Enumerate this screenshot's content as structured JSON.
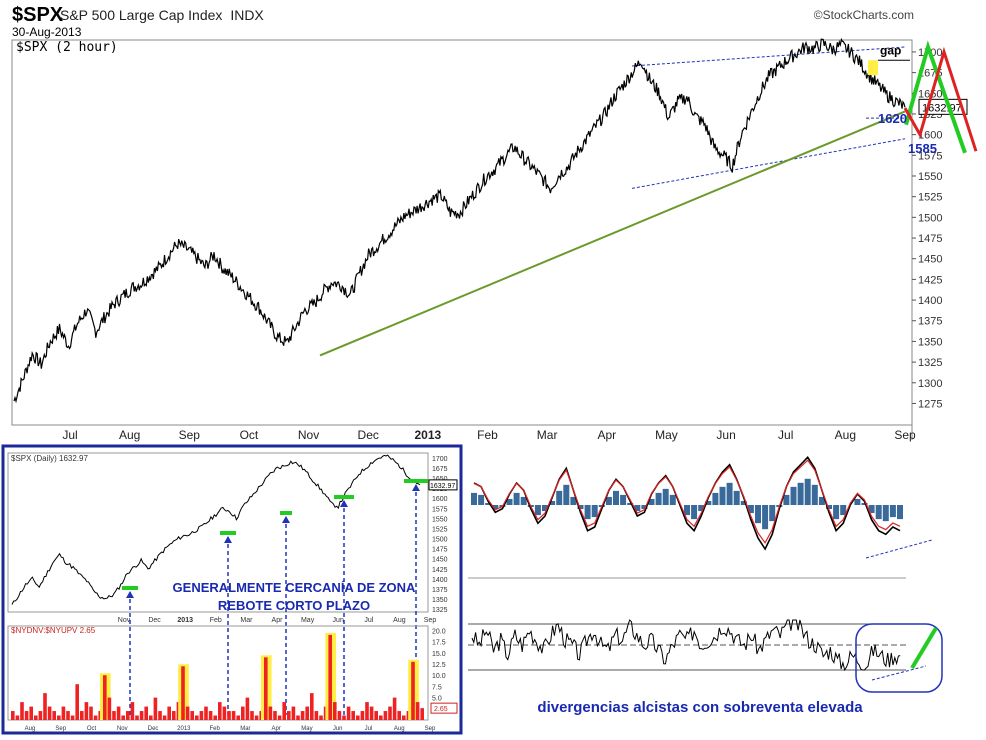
{
  "header": {
    "title": "$SPX",
    "subtitle": "S&P 500 Large Cap Index",
    "exchange": "INDX",
    "logo": "©StockCharts.com",
    "date": "30-Aug-2013",
    "legend": "$SPX (2 hour)"
  },
  "colors": {
    "price": "#000000",
    "trendline": "#6a9a2a",
    "channel": "#2233bb",
    "green_path": "#22cc22",
    "red_path": "#dd2222",
    "gap_highlight": "#ffee44",
    "inset_border": "#1a2a9a",
    "annotation_text": "#1a2ab0",
    "histogram": "#3a6a9a",
    "volume_bar": "#ee2222"
  },
  "annotations": {
    "gap": "gap",
    "level_1620": "1620",
    "level_1585": "1585",
    "inset_text_line1": "GENERALMENTE CERCANÍA DE ZONA",
    "inset_text_line2": "REBOTE CORTO PLAZO",
    "divergence_text": "divergencias alcistas con sobreventa elevada"
  },
  "chart_data": [
    {
      "type": "line",
      "series": [
        {
          "values": [
            1278,
            1305,
            1335,
            1322,
            1350,
            1365,
            1345,
            1372,
            1388,
            1362,
            1380,
            1395,
            1405,
            1415,
            1420,
            1430,
            1440,
            1455,
            1468,
            1462,
            1452,
            1440,
            1455,
            1438,
            1428,
            1415,
            1402,
            1390,
            1372,
            1355,
            1348,
            1368,
            1388,
            1395,
            1410,
            1422,
            1418,
            1406,
            1432,
            1455,
            1466,
            1478,
            1490,
            1502,
            1508,
            1515,
            1522,
            1526,
            1506,
            1505,
            1520,
            1535,
            1550,
            1560,
            1573,
            1585,
            1572,
            1560,
            1548,
            1535,
            1552,
            1562,
            1580,
            1595,
            1610,
            1625,
            1645,
            1660,
            1675,
            1690,
            1665,
            1650,
            1620,
            1640,
            1645,
            1622,
            1612,
            1585,
            1575,
            1562,
            1600,
            1625,
            1650,
            1670,
            1680,
            1690,
            1698,
            1706,
            1704,
            1710,
            1703,
            1708,
            1700,
            1688,
            1672,
            1660,
            1648,
            1640,
            1632.97
          ]
        }
      ],
      "x_labels": [
        "Jul",
        "Aug",
        "Sep",
        "Oct",
        "Nov",
        "Dec",
        "2013",
        "Feb",
        "Mar",
        "Apr",
        "May",
        "Jun",
        "Jul",
        "Aug",
        "Sep"
      ],
      "y_ticks": [
        1275,
        1300,
        1325,
        1350,
        1375,
        1400,
        1425,
        1450,
        1475,
        1500,
        1525,
        1550,
        1575,
        1600,
        1625,
        1650,
        1675,
        1700
      ],
      "ylim": [
        1255,
        1712
      ],
      "last_value_label": "1632.97"
    },
    {
      "type": "line",
      "legend_price": "$SPX (Daily) 1632.97",
      "series": [
        {
          "values": [
            1335,
            1360,
            1385,
            1400,
            1380,
            1410,
            1440,
            1460,
            1440,
            1428,
            1410,
            1395,
            1370,
            1355,
            1352,
            1362,
            1385,
            1415,
            1430,
            1445,
            1425,
            1445,
            1465,
            1482,
            1495,
            1505,
            1510,
            1520,
            1530,
            1545,
            1560,
            1575,
            1568,
            1550,
            1580,
            1600,
            1620,
            1640,
            1660,
            1675,
            1680,
            1690,
            1685,
            1670,
            1650,
            1630,
            1610,
            1585,
            1580,
            1610,
            1635,
            1660,
            1675,
            1690,
            1700,
            1705,
            1695,
            1680,
            1660,
            1645,
            1632.97
          ]
        }
      ],
      "x_labels": [
        "Nov",
        "Dec",
        "2013",
        "Feb",
        "Mar",
        "Apr",
        "May",
        "Jun",
        "Jul",
        "Aug",
        "Sep"
      ],
      "y_ticks": [
        1325,
        1350,
        1375,
        1400,
        1425,
        1450,
        1475,
        1500,
        1525,
        1550,
        1575,
        1600,
        1625,
        1650,
        1675,
        1700
      ],
      "ylim": [
        1318,
        1712
      ],
      "last_value_label": "1632.97"
    },
    {
      "type": "bar",
      "legend": "$NYDNV:$NYUPV 2.65",
      "series": [
        {
          "values": [
            2,
            1,
            4,
            2,
            3,
            1,
            2,
            6,
            3,
            2,
            1,
            3,
            2,
            1,
            8,
            2,
            4,
            3,
            1,
            2,
            10,
            5,
            2,
            3,
            1,
            2,
            4,
            1,
            2,
            3,
            1,
            5,
            2,
            1,
            3,
            2,
            4,
            12,
            3,
            2,
            1,
            2,
            3,
            2,
            1,
            4,
            3,
            2,
            2,
            1,
            3,
            5,
            2,
            1,
            2,
            14,
            3,
            2,
            1,
            4,
            2,
            3,
            1,
            2,
            3,
            6,
            2,
            1,
            3,
            19,
            4,
            2,
            1,
            3,
            2,
            1,
            2,
            4,
            3,
            2,
            1,
            2,
            3,
            5,
            2,
            1,
            2,
            13,
            4,
            2.65
          ]
        }
      ],
      "y_ticks": [
        2.5,
        5.0,
        7.5,
        10.0,
        12.5,
        15.0,
        17.5,
        20.0
      ],
      "ylim": [
        0,
        21
      ],
      "last_value_label": "2.65",
      "x_labels": [
        "Aug",
        "Sep",
        "Oct",
        "Nov",
        "Dec",
        "2013",
        "Feb",
        "Mar",
        "Apr",
        "May",
        "Jun",
        "Jul",
        "Aug",
        "Sep"
      ]
    },
    {
      "type": "line",
      "series": [
        {
          "values": [
            12,
            10,
            2,
            -4,
            -2,
            6,
            12,
            8,
            -2,
            -10,
            -6,
            4,
            14,
            20,
            8,
            -4,
            -14,
            -12,
            -2,
            8,
            14,
            10,
            2,
            -6,
            -4,
            6,
            12,
            16,
            10,
            0,
            -10,
            -14,
            -6,
            4,
            12,
            18,
            22,
            14,
            4,
            -8,
            -18,
            -24,
            -16,
            -2,
            10,
            18,
            22,
            26,
            20,
            8,
            -4,
            -14,
            -10,
            0,
            6,
            2,
            -8,
            -14,
            -16,
            -12,
            -14
          ]
        }
      ],
      "ylim": [
        -30,
        30
      ]
    },
    {
      "type": "line",
      "series": [
        {
          "values": [
            0.7,
            0.5,
            0.8,
            0.4,
            0.6,
            0.3,
            0.7,
            0.5,
            0.8,
            0.6,
            0.4,
            0.7,
            0.9,
            0.6,
            0.5,
            0.3,
            0.6,
            0.8,
            0.5,
            0.4,
            0.7,
            0.6,
            0.9,
            0.7,
            0.5,
            0.6,
            0.4,
            0.2,
            0.5,
            0.7,
            0.6,
            0.8,
            0.5,
            0.6,
            0.7,
            0.9,
            0.8,
            0.6,
            0.5,
            0.7,
            0.4,
            0.6,
            0.8,
            0.7,
            0.9,
            1.0,
            0.8,
            0.6,
            0.5,
            0.3,
            0.4,
            0.2,
            0.1,
            0.3,
            0.2,
            0.1,
            0.4,
            0.3,
            0.2,
            0.3,
            0.25
          ]
        }
      ],
      "ylim": [
        0,
        1
      ]
    }
  ]
}
